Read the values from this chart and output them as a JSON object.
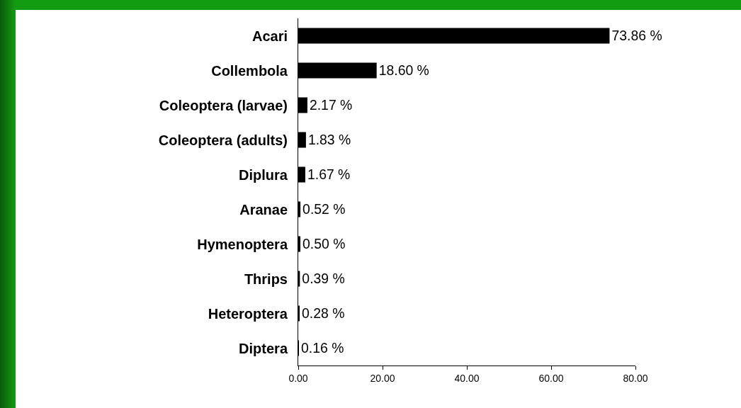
{
  "chart_data": {
    "type": "bar",
    "orientation": "horizontal",
    "categories": [
      "Acari",
      "Collembola",
      "Coleoptera (larvae)",
      "Coleoptera (adults)",
      "Diplura",
      "Aranae",
      "Hymenoptera",
      "Thrips",
      "Heteroptera",
      "Diptera"
    ],
    "values": [
      73.86,
      18.6,
      2.17,
      1.83,
      1.67,
      0.52,
      0.5,
      0.39,
      0.28,
      0.16
    ],
    "value_labels": [
      "73.86 %",
      "18.60 %",
      "2.17 %",
      "1.83 %",
      "1.67 %",
      "0.52 %",
      "0.50 %",
      "0.39 %",
      "0.28 %",
      "0.16 %"
    ],
    "color": "#000000",
    "xlim": [
      0,
      80
    ],
    "xticks": [
      {
        "value": 0,
        "label": "0.00"
      },
      {
        "value": 20,
        "label": "20.00"
      },
      {
        "value": 40,
        "label": "40.00"
      },
      {
        "value": 60,
        "label": "60.00"
      },
      {
        "value": 80,
        "label": "80.00"
      }
    ],
    "grid": false
  }
}
